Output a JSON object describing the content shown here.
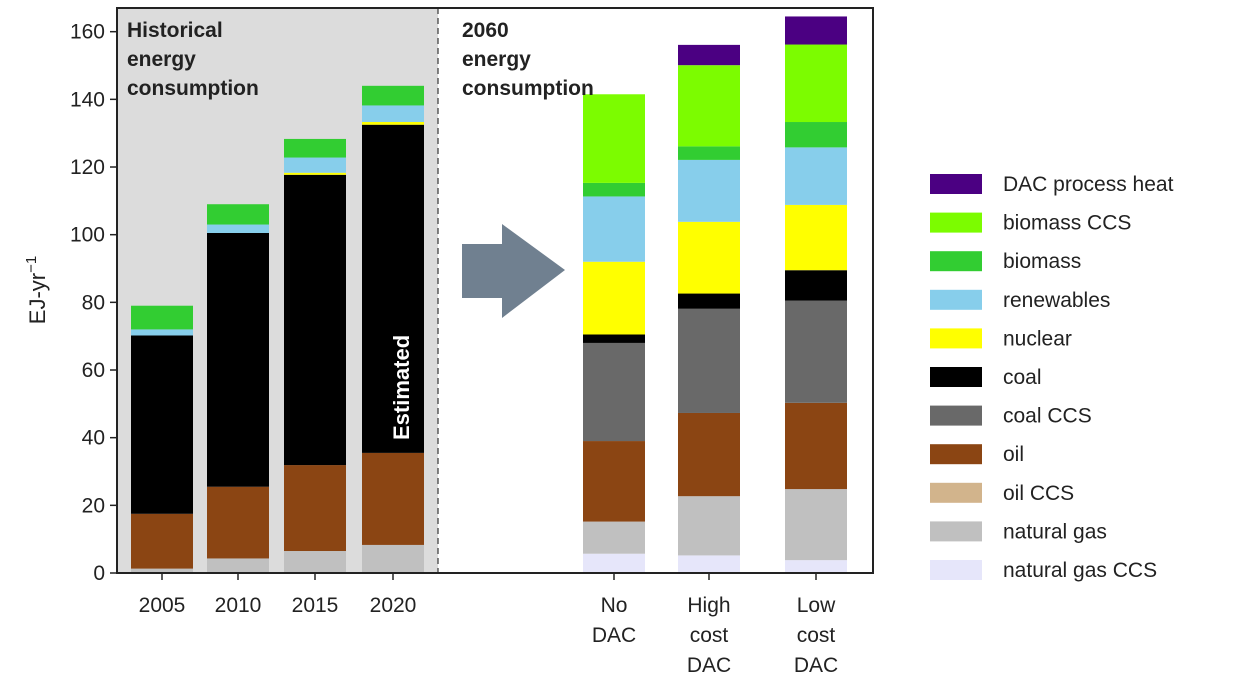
{
  "chart_data": {
    "type": "bar",
    "stacked": true,
    "ylabel": "EJ-yr",
    "ylabel_exponent": "−1",
    "ylim": [
      0,
      167
    ],
    "yticks": [
      0,
      20,
      40,
      60,
      80,
      100,
      120,
      140,
      160
    ],
    "legend_placement": "right",
    "categories": [
      "2005",
      "2010",
      "2015",
      "2020",
      "No DAC",
      "High cost DAC",
      "Low cost DAC"
    ],
    "category_display": [
      [
        "2005"
      ],
      [
        "2010"
      ],
      [
        "2015"
      ],
      [
        "2020"
      ],
      [
        "No",
        "DAC"
      ],
      [
        "High",
        "cost",
        "DAC"
      ],
      [
        "Low",
        "cost",
        "DAC"
      ]
    ],
    "panels": [
      {
        "title_lines": [
          "Historical",
          "energy",
          "consumption"
        ],
        "shaded": true
      },
      {
        "title_lines": [
          "2060",
          "energy",
          "consumption"
        ],
        "shaded": false
      }
    ],
    "annotation": "Estimated",
    "series": [
      {
        "name": "natural gas CCS",
        "color": "#e6e6fa",
        "values": [
          0,
          0,
          0,
          0,
          5.7,
          5.2,
          3.8
        ]
      },
      {
        "name": "natural gas",
        "color": "#c0c0c0",
        "values": [
          1.3,
          4.3,
          6.5,
          8.3,
          9.5,
          17.5,
          21.0
        ]
      },
      {
        "name": "oil CCS",
        "color": "#d2b48c",
        "values": [
          0,
          0,
          0,
          0,
          0,
          0,
          0
        ]
      },
      {
        "name": "oil",
        "color": "#8b4513",
        "values": [
          16.2,
          21.2,
          25.4,
          27.2,
          23.8,
          24.6,
          25.5
        ]
      },
      {
        "name": "coal CCS",
        "color": "#696969",
        "values": [
          0,
          0,
          0,
          0,
          29.0,
          30.8,
          30.2
        ]
      },
      {
        "name": "coal",
        "color": "#000000",
        "values": [
          52.7,
          75.0,
          85.8,
          97.0,
          2.5,
          4.5,
          9.0
        ]
      },
      {
        "name": "nuclear",
        "color": "#ffff00",
        "values": [
          0,
          0,
          0.6,
          0.8,
          21.5,
          21.2,
          19.3
        ]
      },
      {
        "name": "renewables",
        "color": "#87ceeb",
        "values": [
          1.8,
          2.5,
          4.5,
          4.9,
          19.3,
          18.3,
          17.0
        ]
      },
      {
        "name": "biomass",
        "color": "#32cd32",
        "values": [
          7.0,
          6.0,
          5.5,
          5.8,
          4.0,
          4.0,
          7.5
        ]
      },
      {
        "name": "biomass CCS",
        "color": "#7cfc00",
        "values": [
          0,
          0,
          0,
          0,
          26.2,
          24.0,
          22.9
        ]
      },
      {
        "name": "DAC process heat",
        "color": "#4b0082",
        "values": [
          0,
          0,
          0,
          0,
          0,
          6.0,
          8.3
        ]
      }
    ]
  },
  "colors": {
    "panel_shade": "#dcdcdc",
    "arrow": "#708090",
    "axis": "#222222"
  }
}
